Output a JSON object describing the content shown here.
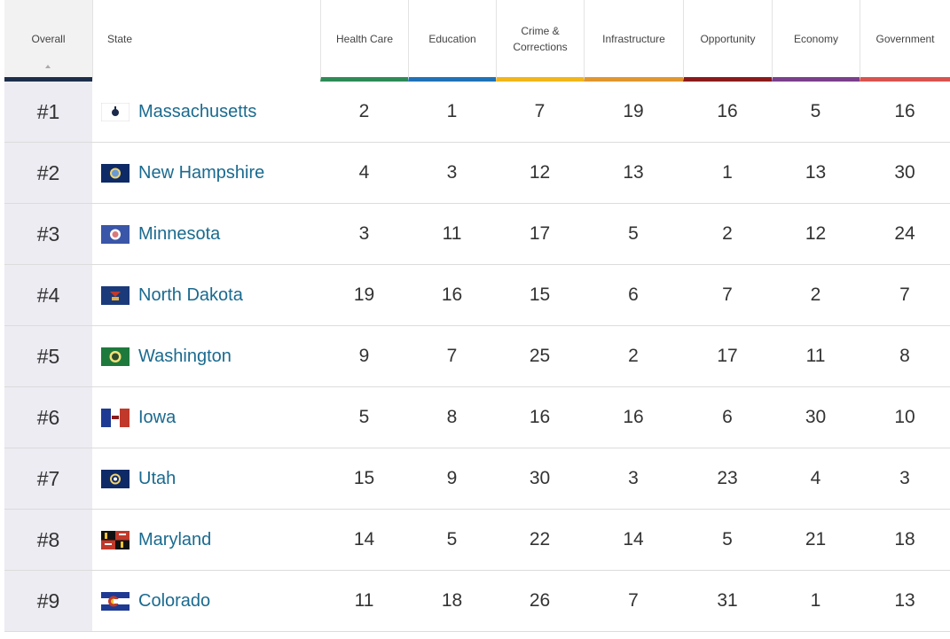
{
  "header": {
    "overall": "Overall",
    "state": "State",
    "columns": [
      {
        "label": "Health Care",
        "color": "#2e8b57"
      },
      {
        "label": "Education",
        "color": "#1f72b8"
      },
      {
        "label": "Crime &\nCorrections",
        "color": "#f2b619"
      },
      {
        "label": "Infrastructure",
        "color": "#e0972d"
      },
      {
        "label": "Opportunity",
        "color": "#8b1a1a"
      },
      {
        "label": "Economy",
        "color": "#7b3f8c"
      },
      {
        "label": "Government",
        "color": "#d9534f"
      }
    ],
    "overall_color": "#1c2e4a"
  },
  "rows": [
    {
      "rank": "#1",
      "state": "Massachusetts",
      "flag": "flag-massachusetts-icon",
      "values": [
        "2",
        "1",
        "7",
        "19",
        "16",
        "5",
        "16"
      ]
    },
    {
      "rank": "#2",
      "state": "New Hampshire",
      "flag": "flag-new-hampshire-icon",
      "values": [
        "4",
        "3",
        "12",
        "13",
        "1",
        "13",
        "30"
      ]
    },
    {
      "rank": "#3",
      "state": "Minnesota",
      "flag": "flag-minnesota-icon",
      "values": [
        "3",
        "11",
        "17",
        "5",
        "2",
        "12",
        "24"
      ]
    },
    {
      "rank": "#4",
      "state": "North Dakota",
      "flag": "flag-north-dakota-icon",
      "values": [
        "19",
        "16",
        "15",
        "6",
        "7",
        "2",
        "7"
      ]
    },
    {
      "rank": "#5",
      "state": "Washington",
      "flag": "flag-washington-icon",
      "values": [
        "9",
        "7",
        "25",
        "2",
        "17",
        "11",
        "8"
      ]
    },
    {
      "rank": "#6",
      "state": "Iowa",
      "flag": "flag-iowa-icon",
      "values": [
        "5",
        "8",
        "16",
        "16",
        "6",
        "30",
        "10"
      ]
    },
    {
      "rank": "#7",
      "state": "Utah",
      "flag": "flag-utah-icon",
      "values": [
        "15",
        "9",
        "30",
        "3",
        "23",
        "4",
        "3"
      ]
    },
    {
      "rank": "#8",
      "state": "Maryland",
      "flag": "flag-maryland-icon",
      "values": [
        "14",
        "5",
        "22",
        "14",
        "5",
        "21",
        "18"
      ]
    },
    {
      "rank": "#9",
      "state": "Colorado",
      "flag": "flag-colorado-icon",
      "values": [
        "11",
        "18",
        "26",
        "7",
        "31",
        "1",
        "13"
      ]
    }
  ]
}
